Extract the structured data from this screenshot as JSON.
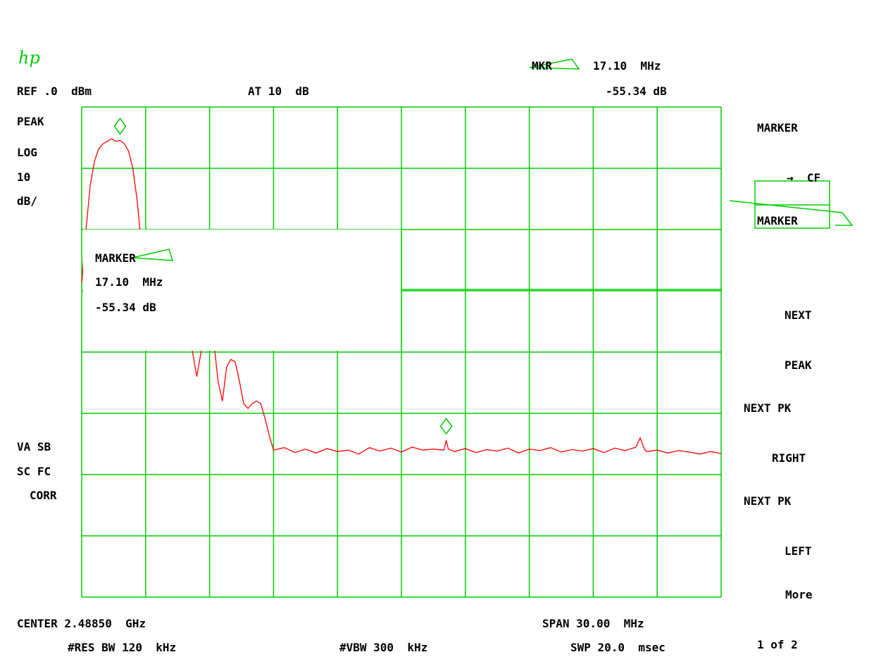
{
  "logo": "hp",
  "header": {
    "marker_label": "MKR",
    "marker_freq": "17.10  MHz",
    "marker_level": "-55.34 dB",
    "ref_level": "REF .0  dBm",
    "attenuation": "AT 10  dB"
  },
  "left_labels": {
    "detector": "PEAK",
    "scale_type": "LOG",
    "scale_value": "10",
    "scale_unit": "dB/",
    "flag1": "VA SB",
    "flag2": "SC FC",
    "flag3": "CORR"
  },
  "marker_readout": {
    "label": "MARKER",
    "freq": "17.10  MHz",
    "level": "-55.34 dB"
  },
  "softkeys": [
    {
      "line1": "MARKER",
      "line2": "→  CF"
    },
    {
      "line1": "MARKER",
      "line2": ""
    },
    {
      "line1": "NEXT",
      "line2": "PEAK"
    },
    {
      "line1": "NEXT PK",
      "line2": "RIGHT"
    },
    {
      "line1": "NEXT PK",
      "line2": "LEFT"
    },
    {
      "line1": "More",
      "line2": "1 of 2"
    }
  ],
  "footer": {
    "center": "CENTER 2.48850  GHz",
    "span": "SPAN 30.00  MHz",
    "rbw": "#RES BW 120  kHz",
    "vbw": "#VBW 300  kHz",
    "sweep": "SWP 20.0  msec"
  },
  "colors": {
    "grid": "#00cc00",
    "trace": "#ff0000",
    "text": "#000000"
  },
  "chart_data": {
    "type": "line",
    "x_unit": "MHz offset from center",
    "y_unit": "dBm",
    "xlim": [
      -15,
      15
    ],
    "ylim": [
      -100,
      0
    ],
    "grid": true,
    "divisions": {
      "x": 10,
      "y": 8
    },
    "series": [
      {
        "points": [
          [
            -15.0,
            -36.0
          ],
          [
            -14.8,
            -25.0
          ],
          [
            -14.6,
            -16.0
          ],
          [
            -14.4,
            -11.0
          ],
          [
            -14.2,
            -8.5
          ],
          [
            -14.0,
            -7.5
          ],
          [
            -13.8,
            -7.0
          ],
          [
            -13.6,
            -6.5
          ],
          [
            -13.4,
            -7.0
          ],
          [
            -13.2,
            -6.8
          ],
          [
            -13.0,
            -7.5
          ],
          [
            -12.8,
            -9.0
          ],
          [
            -12.6,
            -12.5
          ],
          [
            -12.4,
            -19.0
          ],
          [
            -12.2,
            -28.0
          ],
          [
            -12.0,
            -38.0
          ],
          [
            -11.8,
            -37.0
          ],
          [
            -11.6,
            -33.0
          ],
          [
            -11.4,
            -33.5
          ],
          [
            -11.2,
            -37.0
          ],
          [
            -11.0,
            -44.0
          ],
          [
            -10.8,
            -48.0
          ],
          [
            -10.6,
            -46.0
          ],
          [
            -10.4,
            -40.5
          ],
          [
            -10.2,
            -40.0
          ],
          [
            -10.0,
            -43.0
          ],
          [
            -9.8,
            -50.0
          ],
          [
            -9.6,
            -55.0
          ],
          [
            -9.4,
            -50.0
          ],
          [
            -9.2,
            -45.5
          ],
          [
            -9.0,
            -45.0
          ],
          [
            -8.8,
            -48.0
          ],
          [
            -8.6,
            -56.0
          ],
          [
            -8.4,
            -60.0
          ],
          [
            -8.2,
            -53.0
          ],
          [
            -8.0,
            -51.5
          ],
          [
            -7.8,
            -52.0
          ],
          [
            -7.6,
            -56.0
          ],
          [
            -7.4,
            -60.5
          ],
          [
            -7.2,
            -61.5
          ],
          [
            -7.0,
            -60.5
          ],
          [
            -6.8,
            -60.0
          ],
          [
            -6.6,
            -60.5
          ],
          [
            -6.4,
            -63.5
          ],
          [
            -6.2,
            -67.0
          ],
          [
            -6.0,
            -70.0
          ],
          [
            -5.5,
            -69.5
          ],
          [
            -5.0,
            -70.5
          ],
          [
            -4.5,
            -69.8
          ],
          [
            -4.0,
            -70.6
          ],
          [
            -3.5,
            -69.7
          ],
          [
            -3.0,
            -70.3
          ],
          [
            -2.5,
            -70.0
          ],
          [
            -2.0,
            -70.8
          ],
          [
            -1.5,
            -69.5
          ],
          [
            -1.0,
            -70.2
          ],
          [
            -0.5,
            -69.6
          ],
          [
            0.0,
            -70.4
          ],
          [
            0.5,
            -69.4
          ],
          [
            1.0,
            -70.0
          ],
          [
            1.5,
            -69.8
          ],
          [
            2.0,
            -70.0
          ],
          [
            2.1,
            -68.0
          ],
          [
            2.2,
            -69.8
          ],
          [
            2.5,
            -70.3
          ],
          [
            3.0,
            -69.7
          ],
          [
            3.5,
            -70.5
          ],
          [
            4.0,
            -69.9
          ],
          [
            4.5,
            -70.2
          ],
          [
            5.0,
            -69.6
          ],
          [
            5.5,
            -70.6
          ],
          [
            6.0,
            -69.8
          ],
          [
            6.5,
            -70.1
          ],
          [
            7.0,
            -69.5
          ],
          [
            7.5,
            -70.4
          ],
          [
            8.0,
            -69.9
          ],
          [
            8.5,
            -70.2
          ],
          [
            9.0,
            -69.7
          ],
          [
            9.5,
            -70.5
          ],
          [
            10.0,
            -69.6
          ],
          [
            10.5,
            -70.1
          ],
          [
            11.0,
            -69.4
          ],
          [
            11.2,
            -67.5
          ],
          [
            11.4,
            -69.8
          ],
          [
            11.5,
            -70.3
          ],
          [
            12.0,
            -70.0
          ],
          [
            12.5,
            -70.6
          ],
          [
            13.0,
            -70.1
          ],
          [
            13.5,
            -70.4
          ],
          [
            14.0,
            -70.8
          ],
          [
            14.5,
            -70.3
          ],
          [
            15.0,
            -70.7
          ]
        ]
      }
    ],
    "markers": [
      {
        "x": -13.2,
        "y": -6.8
      },
      {
        "x": 2.1,
        "y": -68.0
      }
    ]
  }
}
